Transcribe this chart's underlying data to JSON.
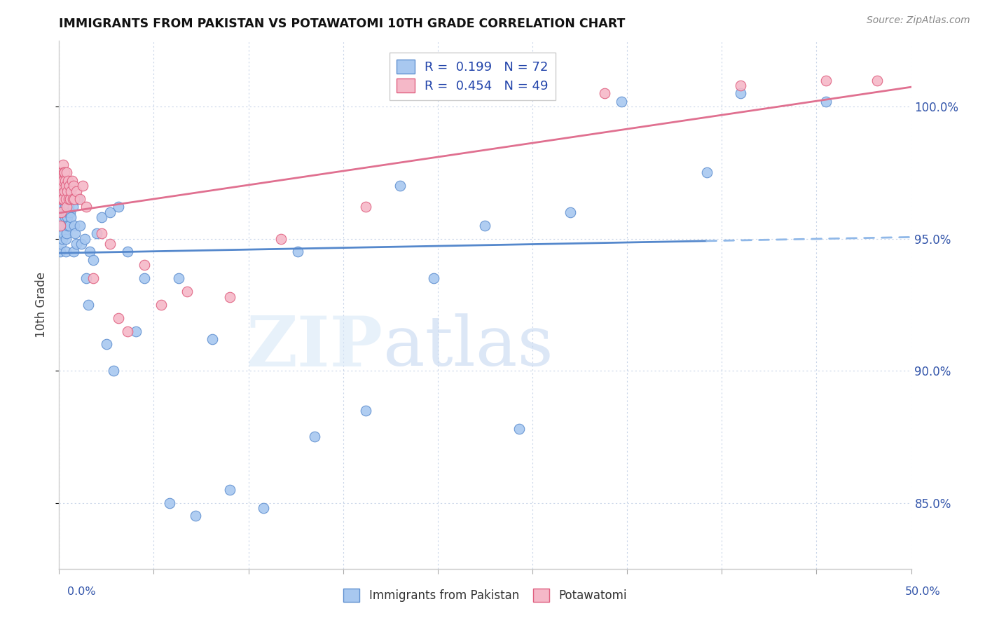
{
  "title": "IMMIGRANTS FROM PAKISTAN VS POTAWATOMI 10TH GRADE CORRELATION CHART",
  "source": "Source: ZipAtlas.com",
  "ylabel": "10th Grade",
  "blue_color": "#A8C8F0",
  "pink_color": "#F5B8C8",
  "blue_edge_color": "#6090D0",
  "pink_edge_color": "#E06080",
  "blue_line_color": "#5588CC",
  "pink_line_color": "#E07090",
  "blue_dash_color": "#90B8E8",
  "xlim": [
    0.0,
    50.0
  ],
  "ylim": [
    82.5,
    102.5
  ],
  "right_yticks": [
    85.0,
    90.0,
    95.0,
    100.0
  ],
  "right_yticklabels": [
    "85.0%",
    "90.0%",
    "95.0%",
    "100.0%"
  ],
  "blue_scatter_x": [
    0.05,
    0.08,
    0.1,
    0.12,
    0.15,
    0.15,
    0.18,
    0.2,
    0.2,
    0.22,
    0.25,
    0.25,
    0.28,
    0.3,
    0.3,
    0.32,
    0.35,
    0.35,
    0.38,
    0.4,
    0.4,
    0.42,
    0.45,
    0.45,
    0.48,
    0.5,
    0.5,
    0.55,
    0.6,
    0.6,
    0.65,
    0.7,
    0.75,
    0.8,
    0.85,
    0.9,
    0.95,
    1.0,
    1.1,
    1.2,
    1.3,
    1.5,
    1.6,
    1.8,
    2.0,
    2.2,
    2.5,
    3.0,
    3.5,
    4.0,
    5.0,
    6.5,
    8.0,
    10.0,
    12.0,
    15.0,
    18.0,
    22.0,
    27.0,
    33.0,
    40.0,
    1.7,
    2.8,
    4.5,
    7.0,
    9.0,
    14.0,
    20.0,
    25.0,
    30.0,
    38.0,
    45.0,
    3.2
  ],
  "blue_scatter_y": [
    94.5,
    95.2,
    94.8,
    95.5,
    96.0,
    95.8,
    96.2,
    95.0,
    96.5,
    95.5,
    96.8,
    95.2,
    96.0,
    97.0,
    95.5,
    96.5,
    95.8,
    96.2,
    94.5,
    96.0,
    95.0,
    95.5,
    95.2,
    96.5,
    95.8,
    96.0,
    95.5,
    96.2,
    95.5,
    96.8,
    96.0,
    95.8,
    96.5,
    96.2,
    94.5,
    95.5,
    95.2,
    94.8,
    96.5,
    95.5,
    94.8,
    95.0,
    93.5,
    94.5,
    94.2,
    95.2,
    95.8,
    96.0,
    96.2,
    94.5,
    93.5,
    85.0,
    84.5,
    85.5,
    84.8,
    87.5,
    88.5,
    93.5,
    87.8,
    100.2,
    100.5,
    92.5,
    91.0,
    91.5,
    93.5,
    91.2,
    94.5,
    97.0,
    95.5,
    96.0,
    97.5,
    100.2,
    90.0
  ],
  "pink_scatter_x": [
    0.05,
    0.08,
    0.1,
    0.12,
    0.15,
    0.15,
    0.18,
    0.2,
    0.22,
    0.25,
    0.25,
    0.28,
    0.3,
    0.32,
    0.35,
    0.38,
    0.4,
    0.42,
    0.45,
    0.48,
    0.5,
    0.55,
    0.6,
    0.65,
    0.7,
    0.75,
    0.8,
    0.85,
    0.9,
    1.0,
    1.2,
    1.4,
    1.6,
    2.0,
    2.5,
    3.0,
    3.5,
    4.0,
    5.0,
    6.0,
    7.5,
    10.0,
    13.0,
    18.0,
    25.0,
    32.0,
    40.0,
    45.0,
    48.0
  ],
  "pink_scatter_y": [
    95.5,
    96.5,
    96.0,
    97.2,
    97.5,
    96.8,
    97.0,
    96.5,
    97.8,
    97.2,
    96.5,
    97.5,
    96.8,
    97.5,
    97.2,
    96.5,
    97.0,
    96.2,
    97.5,
    96.8,
    97.2,
    96.5,
    97.0,
    96.5,
    96.8,
    97.2,
    96.5,
    97.0,
    96.5,
    96.8,
    96.5,
    97.0,
    96.2,
    93.5,
    95.2,
    94.8,
    92.0,
    91.5,
    94.0,
    92.5,
    93.0,
    92.8,
    95.0,
    96.2,
    100.5,
    100.5,
    100.8,
    101.0,
    101.0
  ]
}
